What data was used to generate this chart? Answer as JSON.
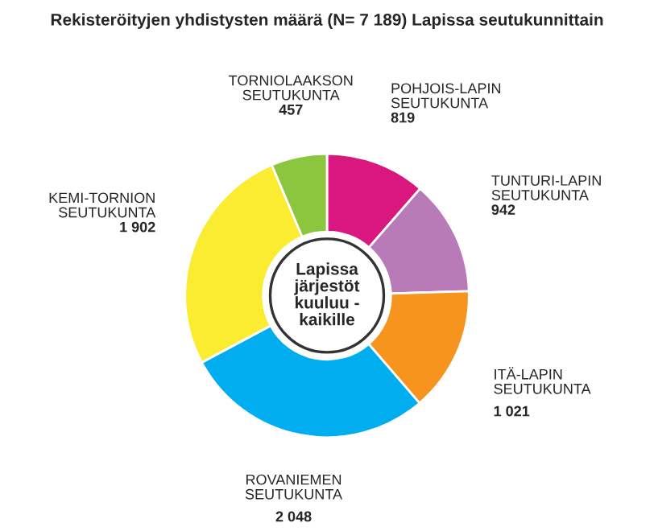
{
  "chart_data": {
    "type": "donut",
    "title": "Rekisteröityjen yhdistysten määrä (N= 7 189) Lapissa seutukunnittain",
    "categories": [
      "POHJOIS-LAPIN\nSEUTUKUNTA",
      "TUNTURI-LAPIN\nSEUTUKUNTA",
      "ITÄ-LAPIN\nSEUTUKUNTA",
      "ROVANIEMEN\nSEUTUKUNTA",
      "KEMI-TORNION\nSEUTUKUNTA",
      "TORNIOLAAKSON\nSEUTUKUNTA"
    ],
    "values": [
      819,
      942,
      1021,
      2048,
      1902,
      457
    ],
    "value_labels": [
      "819",
      "942",
      "1 021",
      "2 048",
      "1 902",
      "457"
    ],
    "colors": [
      "#d9177f",
      "#b87bb8",
      "#f7941d",
      "#00aeef",
      "#f9ec31",
      "#8cc63f"
    ],
    "annotations": [
      "Lapissa\njärjestöt\nkuuluu -\nkaikille"
    ],
    "legend": false
  }
}
